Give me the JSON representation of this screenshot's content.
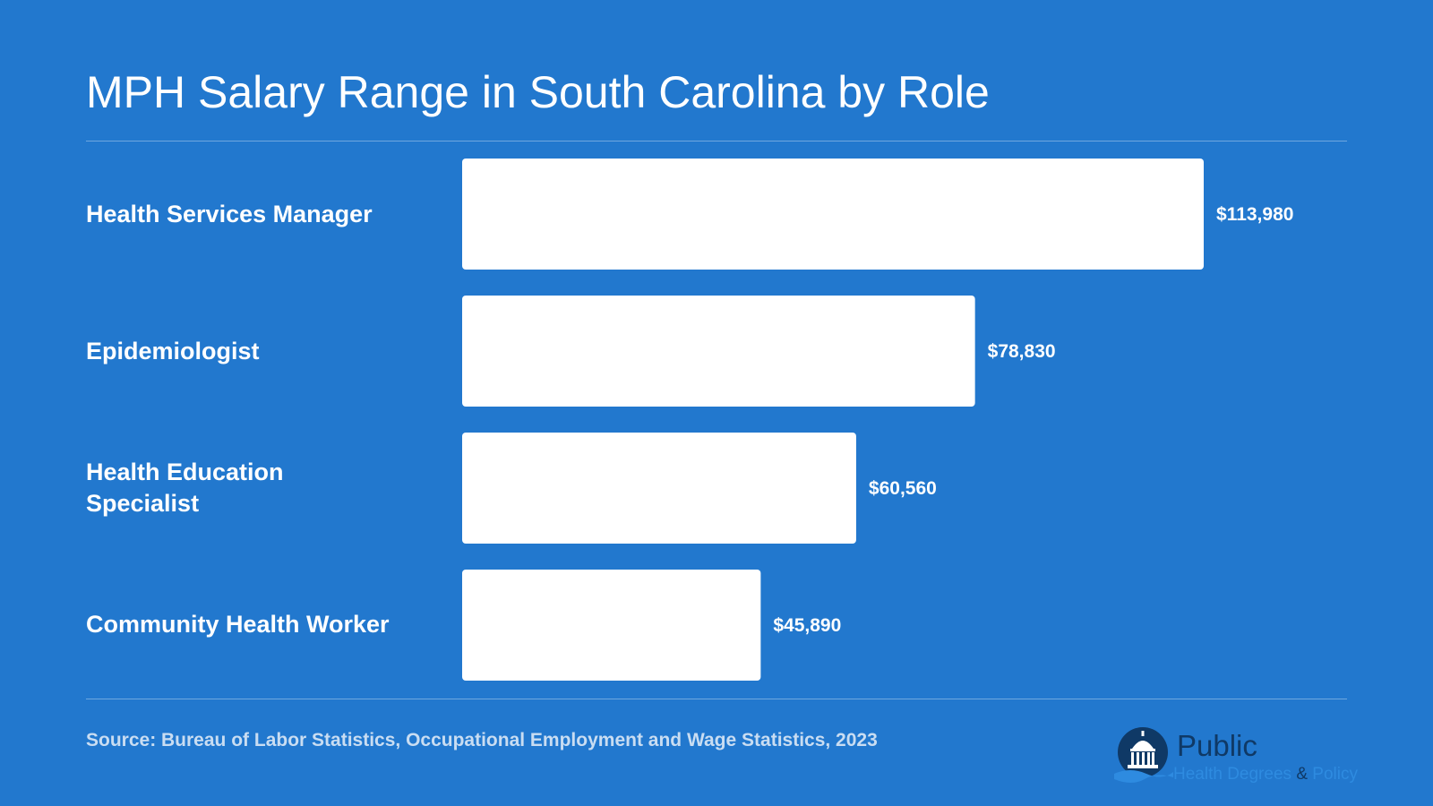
{
  "title": "MPH Salary Range in South Carolina by Role",
  "source": "Source: Bureau of Labor Statistics, Occupational Employment and Wage Statistics, 2023",
  "logo": {
    "name": "Public",
    "tagline_left": "Health Degrees",
    "tagline_amp": "&",
    "tagline_right": "Policy"
  },
  "colors": {
    "background": "#2278CE",
    "bar": "#FFFFFF",
    "text": "#FFFFFF",
    "logo_dark": "#0F3966"
  },
  "chart_data": {
    "type": "bar",
    "orientation": "horizontal",
    "categories": [
      "Health Services Manager",
      "Epidemiologist",
      "Health Education Specialist",
      "Community Health Worker"
    ],
    "values": [
      113980,
      78830,
      60560,
      45890
    ],
    "value_labels": [
      "$113,980",
      "$78,830",
      "$60,560",
      "$45,890"
    ],
    "title": "MPH Salary Range in South Carolina by Role",
    "xlabel": "",
    "ylabel": "",
    "xlim": [
      0,
      113980
    ],
    "grid": false,
    "legend": "none"
  }
}
